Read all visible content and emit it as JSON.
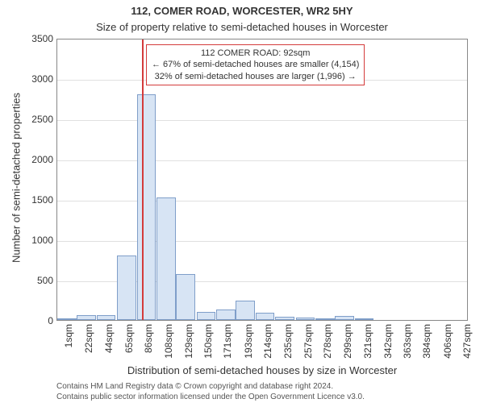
{
  "title_main": "112, COMER ROAD, WORCESTER, WR2 5HY",
  "title_sub": "Size of property relative to semi-detached houses in Worcester",
  "title_main_fontsize": 13,
  "title_sub_fontsize": 13,
  "axis_label_fontsize": 13,
  "tick_fontsize": 12,
  "y_axis_label": "Number of semi-detached properties",
  "x_axis_label": "Distribution of semi-detached houses by size in Worcester",
  "plot": {
    "background_color": "#ffffff",
    "grid_color": "#e0e0e0",
    "border_color": "#888888",
    "bar_fill": "#d7e4f4",
    "bar_border": "#7f9ec9",
    "bar_border_width": 1,
    "ylim": [
      0,
      3500
    ],
    "ytick_step": 500,
    "x_range_sqm": [
      1,
      441
    ],
    "x_tick_start": 1,
    "x_tick_step": 21.3,
    "x_tick_count": 21,
    "x_tick_unit": "sqm",
    "bars": [
      {
        "x_sqm": 1,
        "count": 20
      },
      {
        "x_sqm": 22,
        "count": 65
      },
      {
        "x_sqm": 43,
        "count": 60
      },
      {
        "x_sqm": 65,
        "count": 800
      },
      {
        "x_sqm": 86,
        "count": 2800
      },
      {
        "x_sqm": 107,
        "count": 1520
      },
      {
        "x_sqm": 128,
        "count": 570
      },
      {
        "x_sqm": 150,
        "count": 100
      },
      {
        "x_sqm": 171,
        "count": 130
      },
      {
        "x_sqm": 192,
        "count": 240
      },
      {
        "x_sqm": 213,
        "count": 90
      },
      {
        "x_sqm": 234,
        "count": 40
      },
      {
        "x_sqm": 256,
        "count": 35
      },
      {
        "x_sqm": 277,
        "count": 10
      },
      {
        "x_sqm": 298,
        "count": 50
      },
      {
        "x_sqm": 319,
        "count": 5
      },
      {
        "x_sqm": 341,
        "count": 0
      },
      {
        "x_sqm": 362,
        "count": 0
      },
      {
        "x_sqm": 383,
        "count": 0
      },
      {
        "x_sqm": 404,
        "count": 0
      },
      {
        "x_sqm": 425,
        "count": 0
      }
    ]
  },
  "marker": {
    "value_sqm": 92,
    "line_color": "#d43b3b",
    "annotation_border": "#d43b3b",
    "annotation_bg": "#ffffff",
    "annotation_fontsize": 11,
    "lines": [
      "112 COMER ROAD: 92sqm",
      "← 67% of semi-detached houses are smaller (4,154)",
      "32% of semi-detached houses are larger (1,996) →"
    ]
  },
  "attribution": {
    "line1": "Contains HM Land Registry data © Crown copyright and database right 2024.",
    "line2": "Contains public sector information licensed under the Open Government Licence v3.0.",
    "fontsize": 10,
    "color": "#555555"
  }
}
